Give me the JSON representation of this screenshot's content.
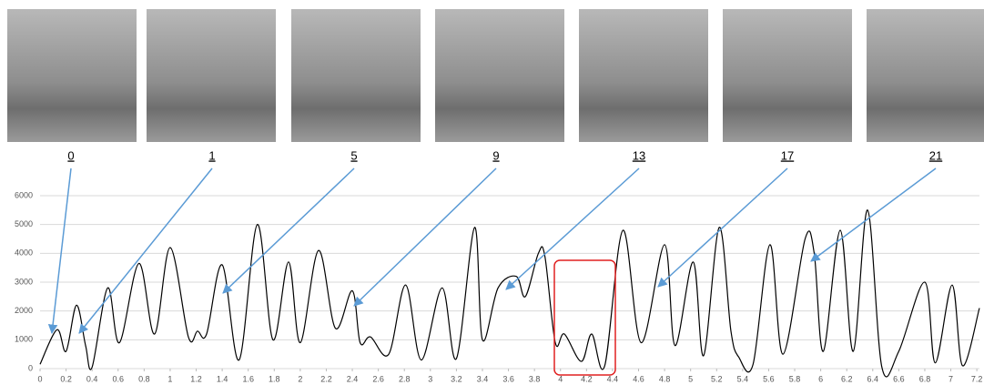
{
  "frames": {
    "labels": [
      "0",
      "1",
      "5",
      "9",
      "13",
      "17",
      "21"
    ]
  },
  "chart_data": {
    "type": "line",
    "color": "#000000",
    "grid": true,
    "x": [
      0,
      0.13,
      0.2,
      0.28,
      0.35,
      0.4,
      0.52,
      0.61,
      0.76,
      0.88,
      1.0,
      1.14,
      1.21,
      1.28,
      1.4,
      1.53,
      1.67,
      1.79,
      1.91,
      2.0,
      2.14,
      2.27,
      2.4,
      2.46,
      2.54,
      2.68,
      2.81,
      2.93,
      3.09,
      3.2,
      3.34,
      3.4,
      3.52,
      3.66,
      3.73,
      3.83,
      3.88,
      3.96,
      4.03,
      4.16,
      4.24,
      4.34,
      4.48,
      4.62,
      4.8,
      4.88,
      5.02,
      5.1,
      5.22,
      5.31,
      5.37,
      5.48,
      5.61,
      5.71,
      5.88,
      5.95,
      6.02,
      6.15,
      6.25,
      6.36,
      6.47,
      6.6,
      6.8,
      6.88,
      7.01,
      7.09,
      7.22
    ],
    "values": [
      150,
      1350,
      600,
      2200,
      800,
      50,
      2800,
      900,
      3650,
      1200,
      4200,
      1100,
      1300,
      1200,
      3600,
      300,
      5000,
      1000,
      3700,
      900,
      4100,
      1400,
      2700,
      900,
      1100,
      500,
      2900,
      300,
      2800,
      350,
      4900,
      1000,
      2800,
      3200,
      2500,
      4000,
      3900,
      900,
      1200,
      250,
      1200,
      100,
      4800,
      900,
      4300,
      800,
      3700,
      450,
      4900,
      1300,
      400,
      150,
      4300,
      500,
      4500,
      4000,
      600,
      4800,
      600,
      5500,
      50,
      600,
      3000,
      200,
      2900,
      100,
      2100
    ],
    "xlim": [
      0,
      7.22
    ],
    "ylim": [
      0,
      6000
    ],
    "xticks": [
      0,
      0.2,
      0.4,
      0.6,
      0.8,
      1,
      1.2,
      1.4,
      1.6,
      1.8,
      2,
      2.2,
      2.4,
      2.6,
      2.8,
      3,
      3.2,
      3.4,
      3.6,
      3.8,
      4,
      4.2,
      4.4,
      4.6,
      4.8,
      5,
      5.2,
      5.4,
      5.6,
      5.8,
      6,
      6.2,
      6.4,
      6.6,
      6.8,
      7,
      7.2
    ],
    "yticks": [
      0,
      1000,
      2000,
      3000,
      4000,
      5000,
      6000
    ]
  }
}
